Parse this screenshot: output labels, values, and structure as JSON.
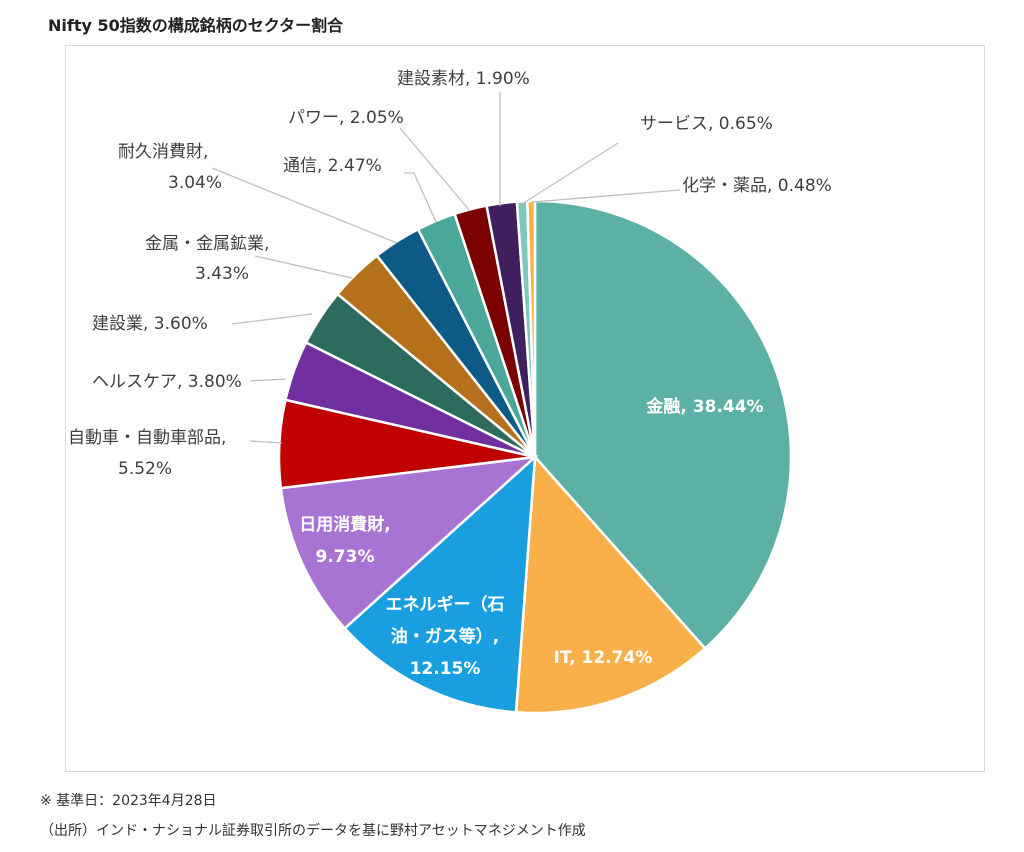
{
  "chart_data": {
    "type": "pie",
    "title": "Nifty 50指数の構成銘柄のセクター割合",
    "start_angle": "12 o'clock",
    "direction": "clockwise",
    "slices": [
      {
        "label": "金融",
        "value": 38.44,
        "text": "金融, 38.44%",
        "color": "#5db0a5"
      },
      {
        "label": "IT",
        "value": 12.74,
        "text": "IT, 12.74%",
        "color": "#f9b04a"
      },
      {
        "label": "エネルギー（石油・ガス等）",
        "value": 12.15,
        "text": "エネルギー（石|油・ガス等）,|12.15%",
        "color": "#199fe0"
      },
      {
        "label": "日用消費財",
        "value": 9.73,
        "text": "日用消費財,|9.73%",
        "color": "#a874d4"
      },
      {
        "label": "自動車・自動車部品",
        "value": 5.52,
        "text": "自動車・自動車部品,|5.52%",
        "color": "#c00000"
      },
      {
        "label": "ヘルスケア",
        "value": 3.8,
        "text": "ヘルスケア, 3.80%",
        "color": "#7030a0"
      },
      {
        "label": "建設業",
        "value": 3.6,
        "text": "建設業, 3.60%",
        "color": "#2f6a5f"
      },
      {
        "label": "金属・金属鉱業",
        "value": 3.43,
        "text": "金属・金属鉱業,|3.43%",
        "color": "#b5701c"
      },
      {
        "label": "耐久消費財",
        "value": 3.04,
        "text": "耐久消費財,|3.04%",
        "color": "#0e5a86"
      },
      {
        "label": "通信",
        "value": 2.47,
        "text": "通信, 2.47%",
        "color": "#4aa79a"
      },
      {
        "label": "パワー",
        "value": 2.05,
        "text": "パワー, 2.05%",
        "color": "#7b0000"
      },
      {
        "label": "建設素材",
        "value": 1.9,
        "text": "建設素材, 1.90%",
        "color": "#3f1f5e"
      },
      {
        "label": "サービス",
        "value": 0.65,
        "text": "サービス, 0.65%",
        "color": "#7fc7bd"
      },
      {
        "label": "化学・薬品",
        "value": 0.48,
        "text": "化学・薬品, 0.48%",
        "color": "#f9b04a"
      }
    ]
  },
  "notes": {
    "date": "※ 基準日：2023年4月28日",
    "source": "（出所）インド・ナショナル証券取引所のデータを基に野村アセットマネジメント作成"
  }
}
